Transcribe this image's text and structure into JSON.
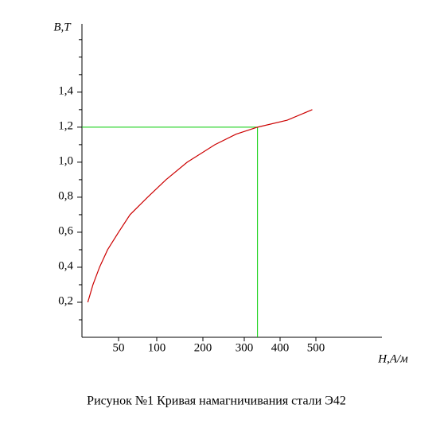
{
  "chart_data": {
    "type": "line",
    "caption": "Рисунок №1 Кривая намагничивания стали Э42",
    "x_label": "H,A/м",
    "y_label": "B,T",
    "x": [
      8,
      15,
      24,
      35,
      50,
      65,
      88,
      120,
      166,
      229,
      280,
      337,
      420,
      490
    ],
    "series": [
      {
        "color": "#cc0000",
        "values": [
          0.2,
          0.3,
          0.4,
          0.5,
          0.6,
          0.7,
          0.8,
          0.9,
          1.0,
          1.1,
          1.16,
          1.2,
          1.24,
          1.3
        ]
      }
    ],
    "xlim": [
      0,
      680
    ],
    "xticks": [
      50,
      100,
      200,
      300,
      400,
      500
    ],
    "ylim": [
      0,
      1.79
    ],
    "yticks": [
      {
        "value": 0.2,
        "label": "0,2"
      },
      {
        "value": 0.4,
        "label": "0,4"
      },
      {
        "value": 0.6,
        "label": "0,6"
      },
      {
        "value": 0.8,
        "label": "0,8"
      },
      {
        "value": 1.0,
        "label": "1,0"
      },
      {
        "value": 1.2,
        "label": "1,2"
      },
      {
        "value": 1.4,
        "label": "1,4"
      }
    ],
    "yminorticks": [
      0.1,
      0.3,
      0.5,
      0.7,
      0.9,
      1.1,
      1.3,
      1.5,
      1.6,
      1.7
    ],
    "guide": {
      "x": 337,
      "y": 1.2,
      "color": "#00cc00"
    }
  }
}
